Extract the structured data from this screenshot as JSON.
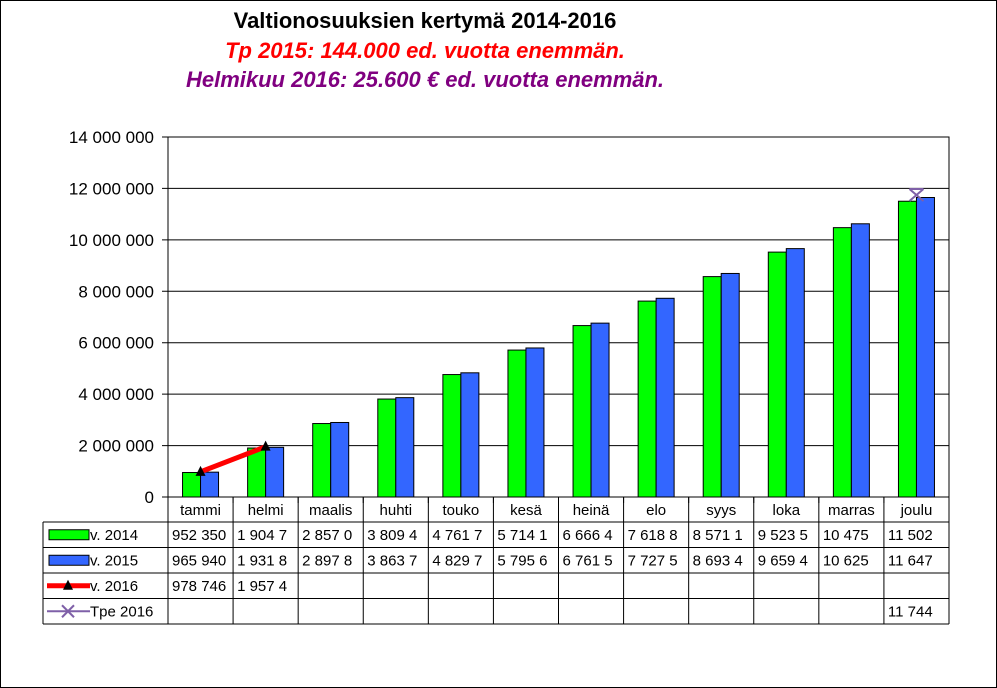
{
  "chart_data": {
    "type": "bar",
    "title": "Valtionosuuksien kertymä 2014-2016",
    "subtitle_1": "Tp 2015: 144.000 ed. vuotta enemmän.",
    "subtitle_2": "Helmikuu 2016: 25.600 € ed. vuotta enemmän.",
    "categories": [
      "tammi",
      "helmi",
      "maalis",
      "huhti",
      "touko",
      "kesä",
      "heinä",
      "elo",
      "syys",
      "loka",
      "marras",
      "joulu"
    ],
    "ylim": [
      0,
      14000000
    ],
    "yticks": [
      0,
      2000000,
      4000000,
      6000000,
      8000000,
      10000000,
      12000000,
      14000000
    ],
    "ytick_labels": [
      "0",
      "2 000 000",
      "4 000 000",
      "6 000 000",
      "8 000 000",
      "10 000 000",
      "12 000 000",
      "14 000 000"
    ],
    "grid": true,
    "legend": "data-table",
    "series": [
      {
        "name": "v. 2014",
        "type": "bar",
        "color": "#00ff00",
        "values": [
          952350,
          1904700,
          2857000,
          3809400,
          4761700,
          5714100,
          6666400,
          7618800,
          8571100,
          9523500,
          10475000,
          11502000
        ],
        "labels": [
          "952 350",
          "1 904 7",
          "2 857 0",
          "3 809 4",
          "4 761 7",
          "5 714 1",
          "6 666 4",
          "7 618 8",
          "8 571 1",
          "9 523 5",
          "10 475",
          "11 502"
        ]
      },
      {
        "name": "v. 2015",
        "type": "bar",
        "color": "#3366ff",
        "values": [
          965940,
          1931800,
          2897800,
          3863700,
          4829700,
          5795600,
          6761500,
          7727500,
          8693400,
          9659400,
          10625000,
          11647000
        ],
        "labels": [
          "965 940",
          "1 931 8",
          "2 897 8",
          "3 863 7",
          "4 829 7",
          "5 795 6",
          "6 761 5",
          "7 727 5",
          "8 693 4",
          "9 659 4",
          "10 625",
          "11 647"
        ]
      },
      {
        "name": "v. 2016",
        "type": "line",
        "color": "#ff0000",
        "marker": "triangle",
        "values": [
          978746,
          1957400,
          null,
          null,
          null,
          null,
          null,
          null,
          null,
          null,
          null,
          null
        ],
        "labels": [
          "978 746",
          "1 957 4",
          "",
          "",
          "",
          "",
          "",
          "",
          "",
          "",
          "",
          ""
        ]
      },
      {
        "name": "Tpe 2016",
        "type": "marker",
        "color": "#7f60a8",
        "marker": "x",
        "values": [
          null,
          null,
          null,
          null,
          null,
          null,
          null,
          null,
          null,
          null,
          null,
          11744000
        ],
        "labels": [
          "",
          "",
          "",
          "",
          "",
          "",
          "",
          "",
          "",
          "",
          "",
          "11 744"
        ]
      }
    ]
  }
}
